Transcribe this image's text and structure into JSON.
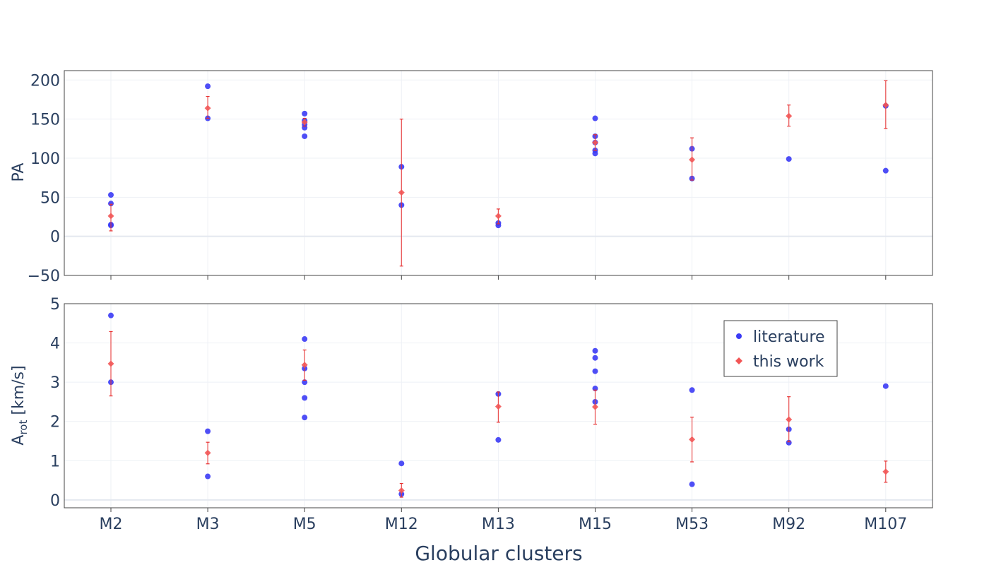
{
  "chart_data": {
    "type": "scatter",
    "xlabel": "Globular clusters",
    "categories": [
      "M2",
      "M3",
      "M5",
      "M12",
      "M13",
      "M15",
      "M53",
      "M92",
      "M107"
    ],
    "colors": {
      "literature": "#3b3bf5",
      "this_work": "#f25555",
      "errorbar": "#e83030"
    },
    "legend": {
      "position": "top-right",
      "items": [
        {
          "key": "literature",
          "label": "literature",
          "marker": "circle"
        },
        {
          "key": "this_work",
          "label": "this work",
          "marker": "diamond"
        }
      ]
    },
    "panels": [
      {
        "id": "pa",
        "ylabel": "PA",
        "ylim": [
          -50,
          212
        ],
        "yticks": [
          -50,
          0,
          50,
          100,
          150,
          200
        ],
        "literature": [
          {
            "x": "M2",
            "y": 53
          },
          {
            "x": "M2",
            "y": 42
          },
          {
            "x": "M2",
            "y": 15
          },
          {
            "x": "M2",
            "y": 14
          },
          {
            "x": "M3",
            "y": 192
          },
          {
            "x": "M3",
            "y": 151
          },
          {
            "x": "M5",
            "y": 157
          },
          {
            "x": "M5",
            "y": 148
          },
          {
            "x": "M5",
            "y": 143
          },
          {
            "x": "M5",
            "y": 139
          },
          {
            "x": "M5",
            "y": 128
          },
          {
            "x": "M12",
            "y": 89
          },
          {
            "x": "M12",
            "y": 40
          },
          {
            "x": "M13",
            "y": 17
          },
          {
            "x": "M13",
            "y": 14
          },
          {
            "x": "M15",
            "y": 151
          },
          {
            "x": "M15",
            "y": 128
          },
          {
            "x": "M15",
            "y": 120
          },
          {
            "x": "M15",
            "y": 110
          },
          {
            "x": "M15",
            "y": 106
          },
          {
            "x": "M53",
            "y": 112
          },
          {
            "x": "M53",
            "y": 74
          },
          {
            "x": "M92",
            "y": 99
          },
          {
            "x": "M107",
            "y": 167
          },
          {
            "x": "M107",
            "y": 84
          }
        ],
        "this_work": [
          {
            "x": "M2",
            "y": 26,
            "lo": 7,
            "hi": 41
          },
          {
            "x": "M3",
            "y": 164,
            "lo": 151,
            "hi": 179
          },
          {
            "x": "M5",
            "y": 146,
            "lo": 141,
            "hi": 151
          },
          {
            "x": "M12",
            "y": 56,
            "lo": -38,
            "hi": 150
          },
          {
            "x": "M13",
            "y": 26,
            "lo": 16,
            "hi": 35
          },
          {
            "x": "M15",
            "y": 120,
            "lo": 110,
            "hi": 130
          },
          {
            "x": "M53",
            "y": 98,
            "lo": 72,
            "hi": 126
          },
          {
            "x": "M92",
            "y": 154,
            "lo": 141,
            "hi": 168
          },
          {
            "x": "M107",
            "y": 168,
            "lo": 138,
            "hi": 199
          }
        ]
      },
      {
        "id": "arot",
        "ylabel": "A",
        "ylabel_sub": "rot",
        "ylabel_unit": " [km/s]",
        "ylim": [
          -0.2,
          5.0
        ],
        "yticks": [
          0,
          1,
          2,
          3,
          4,
          5
        ],
        "literature": [
          {
            "x": "M2",
            "y": 4.7
          },
          {
            "x": "M2",
            "y": 3.0
          },
          {
            "x": "M3",
            "y": 1.75
          },
          {
            "x": "M3",
            "y": 0.6
          },
          {
            "x": "M5",
            "y": 4.1
          },
          {
            "x": "M5",
            "y": 3.35
          },
          {
            "x": "M5",
            "y": 3.0
          },
          {
            "x": "M5",
            "y": 2.6
          },
          {
            "x": "M5",
            "y": 2.1
          },
          {
            "x": "M12",
            "y": 0.93
          },
          {
            "x": "M12",
            "y": 0.15
          },
          {
            "x": "M13",
            "y": 2.7
          },
          {
            "x": "M13",
            "y": 1.53
          },
          {
            "x": "M15",
            "y": 3.8
          },
          {
            "x": "M15",
            "y": 3.62
          },
          {
            "x": "M15",
            "y": 3.28
          },
          {
            "x": "M15",
            "y": 2.84
          },
          {
            "x": "M15",
            "y": 2.5
          },
          {
            "x": "M53",
            "y": 2.8
          },
          {
            "x": "M53",
            "y": 0.4
          },
          {
            "x": "M92",
            "y": 1.8
          },
          {
            "x": "M92",
            "y": 1.46
          },
          {
            "x": "M107",
            "y": 2.9
          }
        ],
        "this_work": [
          {
            "x": "M2",
            "y": 3.47,
            "lo": 2.65,
            "hi": 4.29
          },
          {
            "x": "M3",
            "y": 1.2,
            "lo": 0.92,
            "hi": 1.47
          },
          {
            "x": "M5",
            "y": 3.44,
            "lo": 3.05,
            "hi": 3.82
          },
          {
            "x": "M12",
            "y": 0.24,
            "lo": 0.07,
            "hi": 0.42
          },
          {
            "x": "M13",
            "y": 2.38,
            "lo": 1.98,
            "hi": 2.75
          },
          {
            "x": "M15",
            "y": 2.37,
            "lo": 1.93,
            "hi": 2.8
          },
          {
            "x": "M53",
            "y": 1.54,
            "lo": 0.97,
            "hi": 2.11
          },
          {
            "x": "M92",
            "y": 2.05,
            "lo": 1.48,
            "hi": 2.63
          },
          {
            "x": "M107",
            "y": 0.72,
            "lo": 0.45,
            "hi": 0.99
          }
        ]
      }
    ]
  }
}
